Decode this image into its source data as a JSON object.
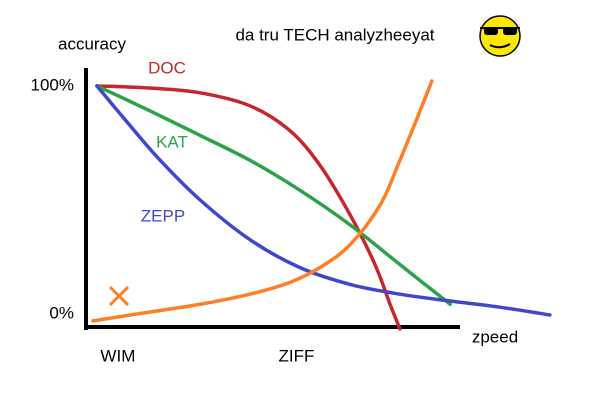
{
  "chart_data": {
    "type": "line",
    "title": "da tru TECH analyzheeyat",
    "y_label": "accuracy",
    "x_label": "zpeed",
    "xlim": [
      0,
      100
    ],
    "ylim": [
      -7,
      107
    ],
    "xticks": [
      {
        "value": 7,
        "label": "WIM"
      },
      {
        "value": 45,
        "label": "ZIFF"
      }
    ],
    "yticks": [
      {
        "value": 100,
        "label": "100%"
      },
      {
        "value": 0,
        "label": "0%"
      }
    ],
    "grid": false,
    "series": [
      {
        "name": "DOC",
        "color": "#c8262c",
        "x": [
          2.55,
          13.8,
          24.5,
          35.1,
          43.6,
          50,
          56.4,
          61.7,
          64.9,
          67
        ],
        "values": [
          100,
          99.1,
          97,
          91.3,
          80.4,
          65.2,
          43.5,
          21.7,
          4.3,
          -6.5
        ]
      },
      {
        "name": "KAT",
        "color": "#2ca24a",
        "x": [
          2.55,
          13.8,
          24.5,
          35.1,
          45.7,
          56.4,
          67,
          77.7
        ],
        "values": [
          100,
          89.1,
          78.3,
          67.4,
          54.3,
          39.1,
          21.7,
          4.3
        ]
      },
      {
        "name": "ZEPP",
        "color": "#3f48cc",
        "x": [
          2.55,
          9.6,
          16,
          24.5,
          35.1,
          45.7,
          56.4,
          67,
          77.7,
          88.3,
          98.9
        ],
        "values": [
          100,
          82.6,
          67.4,
          50,
          32.6,
          20.4,
          13,
          8.7,
          5.7,
          3,
          -0.4
        ]
      },
      {
        "color": "#ff7f27",
        "x": [
          1.7,
          13.8,
          24.5,
          35.1,
          43.6,
          50,
          56.4,
          62.8,
          67,
          71.3,
          73.8
        ],
        "values": [
          -3,
          0.9,
          4.3,
          8.7,
          13.9,
          20.4,
          30.4,
          47.8,
          67.4,
          89.1,
          102.2
        ]
      }
    ]
  }
}
